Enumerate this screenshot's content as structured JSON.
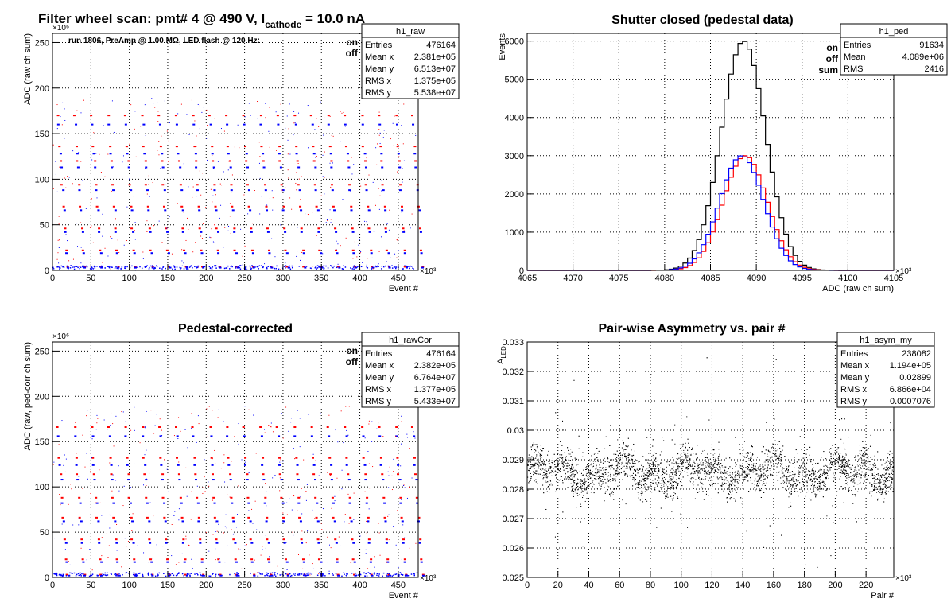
{
  "colors": {
    "on": "#ff0000",
    "off": "#0000ff",
    "sum": "#000000",
    "axis": "#000000",
    "grid": "#000000"
  },
  "charts": [
    {
      "id": "raw",
      "type": "scatter",
      "title_main": "Filter wheel scan: pmt#   4 @   490 V, I",
      "title_sub": "cathode",
      "title_tail": " = 10.0 nA",
      "annotation": "run 1806, PreAmp @ 1.00 MΩ, LED flash @  120 Hz:",
      "xlabel": "Event #",
      "ylabel": "ADC (raw ch sum)",
      "x_multiplier": "×10³",
      "y_multiplier": "×10⁶",
      "xlim": [
        0,
        476
      ],
      "ylim": [
        0,
        260
      ],
      "xticks": [
        0,
        50,
        100,
        150,
        200,
        250,
        300,
        350,
        400,
        450
      ],
      "yticks": [
        0,
        50,
        100,
        150,
        200,
        250
      ],
      "grid": true,
      "legend": [
        {
          "label": "on",
          "color": "#ff0000"
        },
        {
          "label": "off",
          "color": "#0000ff"
        }
      ],
      "stats": {
        "name": "h1_raw",
        "rows": [
          {
            "label": "Entries",
            "value": "476164"
          },
          {
            "label": "Mean x",
            "value": "2.381e+05"
          },
          {
            "label": "Mean y",
            "value": "6.513e+07"
          },
          {
            "label": "RMS x",
            "value": "1.375e+05"
          },
          {
            "label": "RMS y",
            "value": "5.538e+07"
          }
        ]
      },
      "levels": [
        {
          "on": 170,
          "off": 160
        },
        {
          "on": 136,
          "off": 128
        },
        {
          "on": 120,
          "off": 113
        },
        {
          "on": 94,
          "off": 88
        },
        {
          "on": 70,
          "off": 66
        },
        {
          "on": 46,
          "off": 42
        },
        {
          "on": 22,
          "off": 19
        },
        {
          "on": 4,
          "off": 3
        }
      ],
      "period_x": 22
    },
    {
      "id": "ped",
      "type": "histogram",
      "title": "Shutter closed (pedestal data)",
      "xlabel": "ADC (raw ch sum)",
      "ylabel": "Events",
      "x_multiplier": "×10³",
      "xlim": [
        4065,
        4105
      ],
      "ylim": [
        0,
        6200
      ],
      "xticks": [
        4065,
        4070,
        4075,
        4080,
        4085,
        4090,
        4095,
        4100,
        4105
      ],
      "yticks": [
        0,
        1000,
        2000,
        3000,
        4000,
        5000,
        6000
      ],
      "grid": true,
      "legend": [
        {
          "label": "on",
          "color": "#ff0000"
        },
        {
          "label": "off",
          "color": "#0000ff"
        },
        {
          "label": "sum",
          "color": "#000000"
        }
      ],
      "stats": {
        "name": "h1_ped",
        "rows": [
          {
            "label": "Entries",
            "value": "91634"
          },
          {
            "label": "Mean",
            "value": "4.089e+06"
          },
          {
            "label": "RMS",
            "value": "2416"
          }
        ]
      },
      "series": [
        {
          "name": "sum",
          "mean": 4088.6,
          "sigma": 2.42,
          "peak": 6000
        },
        {
          "name": "on",
          "mean": 4088.8,
          "sigma": 2.4,
          "peak": 3000
        },
        {
          "name": "off",
          "mean": 4088.4,
          "sigma": 2.4,
          "peak": 3000
        }
      ],
      "bin_width": 0.5
    },
    {
      "id": "rawCor",
      "type": "scatter",
      "title": "Pedestal-corrected",
      "xlabel": "Event #",
      "ylabel": "ADC (raw, ped-corr ch sum)",
      "x_multiplier": "×10³",
      "y_multiplier": "×10⁶",
      "xlim": [
        0,
        476
      ],
      "ylim": [
        0,
        260
      ],
      "xticks": [
        0,
        50,
        100,
        150,
        200,
        250,
        300,
        350,
        400,
        450
      ],
      "yticks": [
        0,
        50,
        100,
        150,
        200,
        250
      ],
      "grid": true,
      "legend": [
        {
          "label": "on",
          "color": "#ff0000"
        },
        {
          "label": "off",
          "color": "#0000ff"
        }
      ],
      "stats": {
        "name": "h1_rawCor",
        "rows": [
          {
            "label": "Entries",
            "value": "476164"
          },
          {
            "label": "Mean x",
            "value": "2.382e+05"
          },
          {
            "label": "Mean y",
            "value": "6.764e+07"
          },
          {
            "label": "RMS x",
            "value": "1.377e+05"
          },
          {
            "label": "RMS y",
            "value": "5.433e+07"
          }
        ]
      },
      "levels": [
        {
          "on": 166,
          "off": 156
        },
        {
          "on": 132,
          "off": 124
        },
        {
          "on": 114,
          "off": 108
        },
        {
          "on": 88,
          "off": 82
        },
        {
          "on": 66,
          "off": 62
        },
        {
          "on": 42,
          "off": 38
        },
        {
          "on": 20,
          "off": 17
        },
        {
          "on": 3,
          "off": 2
        }
      ],
      "period_x": 22
    },
    {
      "id": "asym",
      "type": "scatter",
      "title": "Pair-wise Asymmetry vs. pair #",
      "xlabel": "Pair #",
      "ylabel_main": "A",
      "ylabel_sub": "LED",
      "x_multiplier": "×10³",
      "xlim": [
        0,
        238
      ],
      "ylim": [
        0.025,
        0.033
      ],
      "xticks": [
        0,
        20,
        40,
        60,
        80,
        100,
        120,
        140,
        160,
        180,
        200,
        220
      ],
      "yticks": [
        0.025,
        0.026,
        0.027,
        0.028,
        0.029,
        0.03,
        0.031,
        0.032,
        0.033
      ],
      "ytick_labels": [
        "0.025",
        "0.026",
        "0.027",
        "0.028",
        "0.029",
        "0.03",
        "0.031",
        "0.032",
        "0.033"
      ],
      "grid": true,
      "stats": {
        "name": "h1_asym_my",
        "rows": [
          {
            "label": "Entries",
            "value": "238082"
          },
          {
            "label": "Mean x",
            "value": "1.194e+05"
          },
          {
            "label": "Mean y",
            "value": "0.02899"
          },
          {
            "label": "RMS x",
            "value": "6.866e+04"
          },
          {
            "label": "RMS y",
            "value": "0.0007076"
          }
        ]
      },
      "band_center": 0.0286,
      "band_spread": 0.0006
    }
  ]
}
